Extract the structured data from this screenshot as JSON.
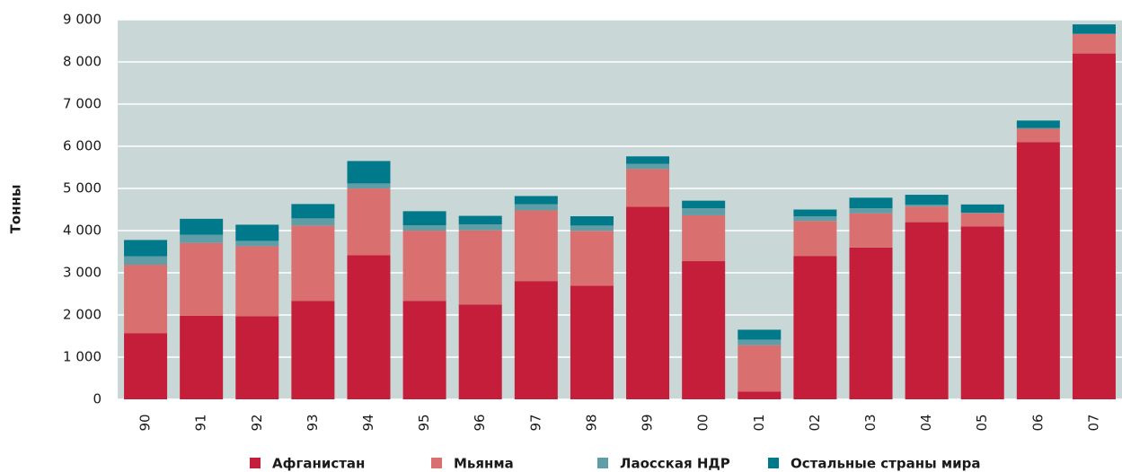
{
  "chart_data": {
    "type": "stacked-bar",
    "y_label": "Тонны",
    "categories": [
      "90",
      "91",
      "92",
      "93",
      "94",
      "95",
      "96",
      "97",
      "98",
      "99",
      "00",
      "01",
      "02",
      "03",
      "04",
      "05",
      "06",
      "07"
    ],
    "series": [
      {
        "name": "Афганистан",
        "color": "#c41e3a",
        "values": [
          1570,
          1980,
          1970,
          2330,
          3416,
          2335,
          2248,
          2804,
          2693,
          4565,
          3276,
          185,
          3400,
          3600,
          4200,
          4100,
          6100,
          8200
        ]
      },
      {
        "name": "Мьянма",
        "color": "#d9706f",
        "values": [
          1621,
          1728,
          1660,
          1791,
          1583,
          1664,
          1760,
          1676,
          1303,
          895,
          1087,
          1097,
          828,
          810,
          370,
          312,
          315,
          460
        ]
      },
      {
        "name": "Лаосская НДР",
        "color": "#5f9ea6",
        "values": [
          202,
          196,
          127,
          169,
          120,
          128,
          140,
          147,
          124,
          124,
          167,
          134,
          112,
          120,
          43,
          14,
          20,
          9
        ]
      },
      {
        "name": "Остальные страны мира",
        "color": "#00798a",
        "values": [
          385,
          376,
          383,
          340,
          531,
          333,
          202,
          193,
          220,
          176,
          180,
          234,
          160,
          250,
          237,
          194,
          175,
          221
        ]
      }
    ],
    "ylim": [
      0,
      9000
    ],
    "yticks": [
      0,
      {
        "value": 1000,
        "label": "1 000"
      },
      {
        "value": 2000,
        "label": "2 000"
      },
      {
        "value": 3000,
        "label": "3 000"
      },
      {
        "value": 4000,
        "label": "4 000"
      },
      {
        "value": 5000,
        "label": "5 000"
      },
      {
        "value": 6000,
        "label": "6 000"
      },
      {
        "value": 7000,
        "label": "7 000"
      },
      {
        "value": 8000,
        "label": "8 000"
      },
      {
        "value": 9000,
        "label": "9 000"
      }
    ],
    "grid": true,
    "legend": "bottom"
  }
}
